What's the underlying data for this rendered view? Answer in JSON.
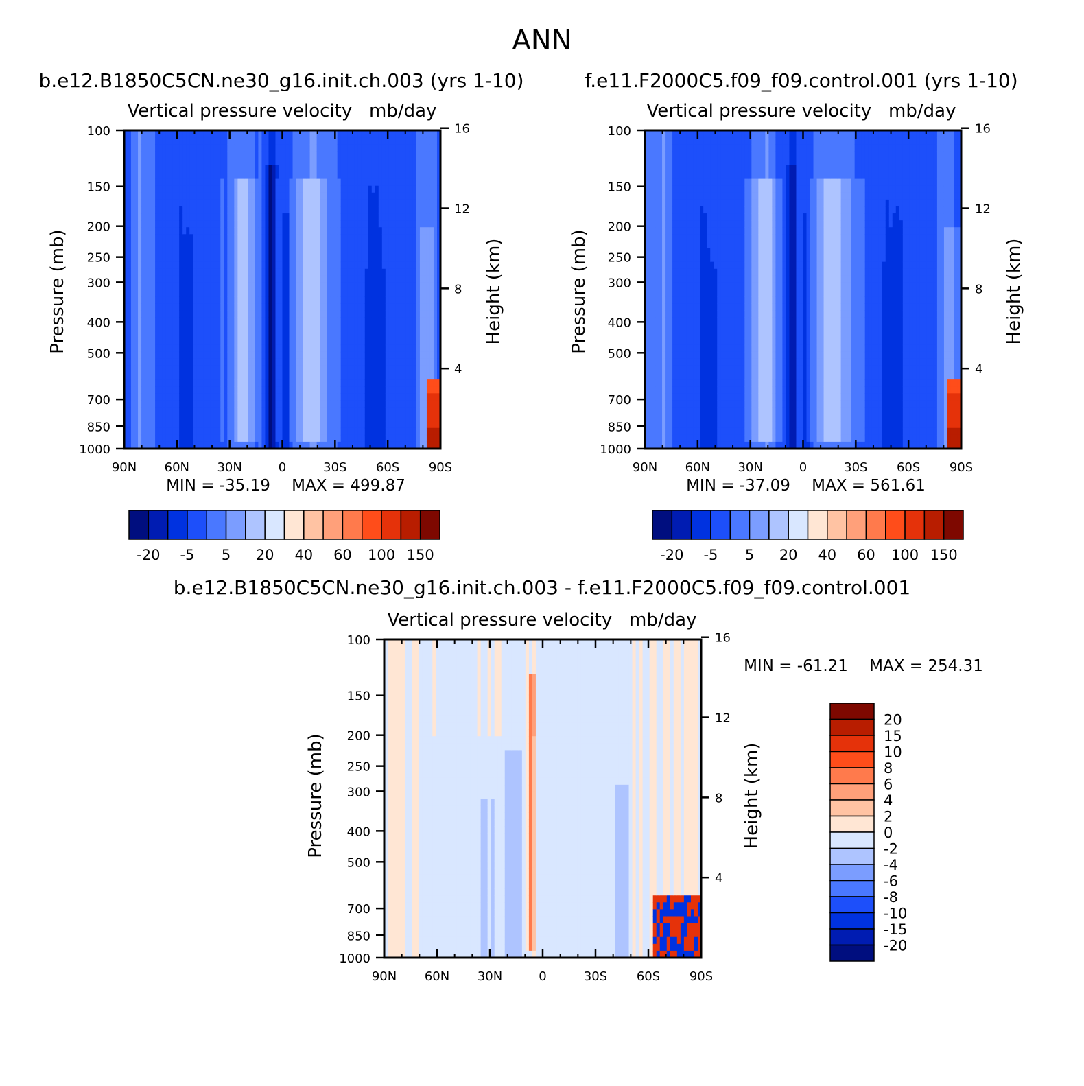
{
  "figure": {
    "title": "ANN",
    "colors": {
      "abs_levels": [
        "#000e7f",
        "#001cb2",
        "#0032e0",
        "#1d4ffa",
        "#4a78ff",
        "#7b9dff",
        "#aec4ff",
        "#d9e7ff",
        "#ffe6d4",
        "#ffc3a3",
        "#ffa07a",
        "#ff7a4c",
        "#ff4d1a",
        "#e5320a",
        "#b81d00",
        "#7e0800"
      ],
      "diff_levels": [
        "#000e7f",
        "#001cb2",
        "#0032e0",
        "#1d4ffa",
        "#4a78ff",
        "#7b9dff",
        "#aec4ff",
        "#d9e7ff",
        "#ffe6d4",
        "#ffc3a3",
        "#ffa07a",
        "#ff7a4c",
        "#ff4d1a",
        "#e5320a",
        "#b81d00",
        "#7e0800"
      ]
    }
  },
  "chart_data": [
    {
      "type": "heatmap",
      "id": "panel-1",
      "case_title": "b.e12.B1850C5CN.ne30_g16.init.ch.003 (yrs 1-10)",
      "variable_title": "Vertical pressure velocity   mb/day",
      "ylabel": "Pressure (mb)",
      "y2label": "Height (km)",
      "x_ticks": [
        "90N",
        "60N",
        "30N",
        "0",
        "30S",
        "60S",
        "90S"
      ],
      "x_range": [
        90,
        -90
      ],
      "y_ticks": [
        "100",
        "150",
        "200",
        "250",
        "300",
        "400",
        "500",
        "700",
        "850",
        "1000"
      ],
      "y_tick_values": [
        100,
        150,
        200,
        250,
        300,
        400,
        500,
        700,
        850,
        1000
      ],
      "y_range": [
        100,
        1000
      ],
      "y_scale": "log",
      "y2_ticks": [
        "16",
        "12",
        "8",
        "4"
      ],
      "y2_tick_values": [
        16,
        12,
        8,
        4
      ],
      "min_label": "MIN = -35.19",
      "max_label": "MAX = 499.87",
      "colorbar": {
        "orientation": "horizontal",
        "labels": [
          "-20",
          "-5",
          "5",
          "20",
          "40",
          "60",
          "100",
          "150"
        ]
      }
    },
    {
      "type": "heatmap",
      "id": "panel-2",
      "case_title": "f.e11.F2000C5.f09_f09.control.001 (yrs 1-10)",
      "variable_title": "Vertical pressure velocity   mb/day",
      "ylabel": "Pressure (mb)",
      "y2label": "Height (km)",
      "x_ticks": [
        "90N",
        "60N",
        "30N",
        "0",
        "30S",
        "60S",
        "90S"
      ],
      "x_range": [
        90,
        -90
      ],
      "y_ticks": [
        "100",
        "150",
        "200",
        "250",
        "300",
        "400",
        "500",
        "700",
        "850",
        "1000"
      ],
      "y_tick_values": [
        100,
        150,
        200,
        250,
        300,
        400,
        500,
        700,
        850,
        1000
      ],
      "y_range": [
        100,
        1000
      ],
      "y_scale": "log",
      "y2_ticks": [
        "16",
        "12",
        "8",
        "4"
      ],
      "y2_tick_values": [
        16,
        12,
        8,
        4
      ],
      "min_label": "MIN = -37.09",
      "max_label": "MAX = 561.61",
      "colorbar": {
        "orientation": "horizontal",
        "labels": [
          "-20",
          "-5",
          "5",
          "20",
          "40",
          "60",
          "100",
          "150"
        ]
      }
    },
    {
      "type": "heatmap",
      "id": "panel-diff",
      "case_title": "b.e12.B1850C5CN.ne30_g16.init.ch.003 - f.e11.F2000C5.f09_f09.control.001",
      "variable_title": "Vertical pressure velocity   mb/day",
      "ylabel": "Pressure (mb)",
      "y2label": "Height (km)",
      "x_ticks": [
        "90N",
        "60N",
        "30N",
        "0",
        "30S",
        "60S",
        "90S"
      ],
      "x_range": [
        90,
        -90
      ],
      "y_ticks": [
        "100",
        "150",
        "200",
        "250",
        "300",
        "400",
        "500",
        "700",
        "850",
        "1000"
      ],
      "y_tick_values": [
        100,
        150,
        200,
        250,
        300,
        400,
        500,
        700,
        850,
        1000
      ],
      "y_range": [
        100,
        1000
      ],
      "y_scale": "log",
      "y2_ticks": [
        "16",
        "12",
        "8",
        "4"
      ],
      "y2_tick_values": [
        16,
        12,
        8,
        4
      ],
      "min_label": "MIN = -61.21",
      "max_label": "MAX = 254.31",
      "colorbar": {
        "orientation": "vertical",
        "labels": [
          "20",
          "15",
          "10",
          "8",
          "6",
          "4",
          "2",
          "0",
          "-2",
          "-4",
          "-6",
          "-8",
          "-10",
          "-15",
          "-20"
        ]
      }
    }
  ]
}
